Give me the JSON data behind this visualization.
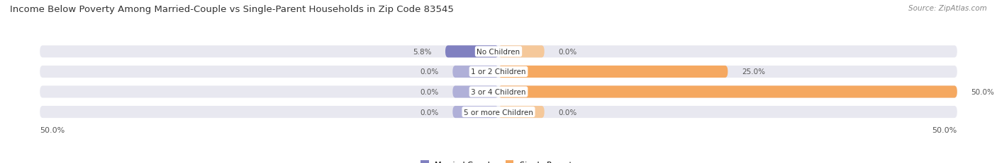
{
  "title": "Income Below Poverty Among Married-Couple vs Single-Parent Households in Zip Code 83545",
  "source": "Source: ZipAtlas.com",
  "categories": [
    "No Children",
    "1 or 2 Children",
    "3 or 4 Children",
    "5 or more Children"
  ],
  "married_values": [
    5.8,
    0.0,
    0.0,
    0.0
  ],
  "single_values": [
    0.0,
    25.0,
    50.0,
    0.0
  ],
  "xlim": 50.0,
  "married_color": "#8080c0",
  "single_color": "#f5a860",
  "single_color_light": "#f5c89a",
  "married_color_light": "#b0b0d8",
  "bar_bg_color": "#e8e8f0",
  "bar_height": 0.6,
  "label_fontsize": 7.5,
  "title_fontsize": 9.5,
  "source_fontsize": 7.5,
  "value_fontsize": 7.5,
  "legend_fontsize": 8,
  "axis_label_fontsize": 8,
  "background_color": "#ffffff",
  "bottom_labels": [
    "50.0%",
    "50.0%"
  ],
  "min_bar_stub": 5.0
}
